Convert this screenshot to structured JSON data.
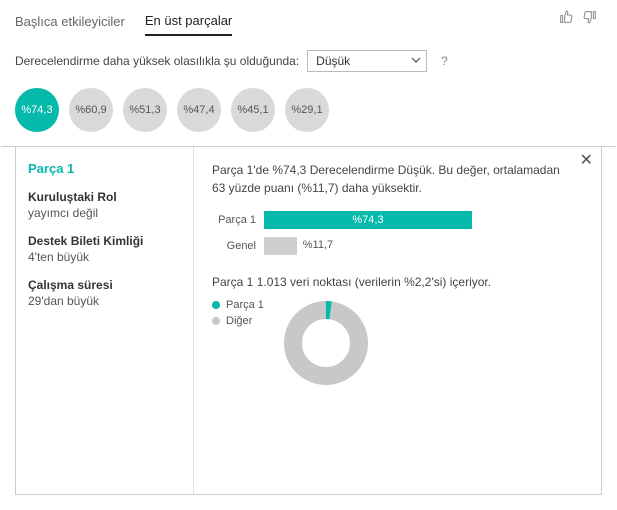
{
  "colors": {
    "accent": "#05b9ab",
    "gray_bubble": "#d9d9d9",
    "gray_bar": "#cfcfcf",
    "gray_donut": "#c8c8c8",
    "text": "#333333",
    "muted": "#666666"
  },
  "tabs": {
    "influencers": "Başlıca etkileyiciler",
    "top_segments": "En üst parçalar",
    "active": "top_segments"
  },
  "filter": {
    "prompt": "Derecelendirme daha yüksek olasılıkla şu olduğunda:",
    "selected": "Düşük",
    "help": "?"
  },
  "bubbles": [
    {
      "label": "%74,3",
      "value": 74.3,
      "active": true
    },
    {
      "label": "%60,9",
      "value": 60.9,
      "active": false
    },
    {
      "label": "%51,3",
      "value": 51.3,
      "active": false
    },
    {
      "label": "%47,4",
      "value": 47.4,
      "active": false
    },
    {
      "label": "%45,1",
      "value": 45.1,
      "active": false
    },
    {
      "label": "%29,1",
      "value": 29.1,
      "active": false
    }
  ],
  "segment": {
    "title": "Parça 1",
    "criteria": [
      {
        "k": "Kuruluştaki Rol",
        "v": "yayımcı değil"
      },
      {
        "k": "Destek Bileti Kimliği",
        "v": "4'ten büyük"
      },
      {
        "k": "Çalışma süresi",
        "v": "29'dan büyük"
      }
    ]
  },
  "detail": {
    "description": "Parça 1'de %74,3 Derecelendirme Düşük. Bu değer, ortalamadan 63 yüzde puanı (%11,7) daha yüksektir.",
    "bars": {
      "max": 100,
      "track_width": 280,
      "rows": [
        {
          "label": "Parça 1",
          "value": 74.3,
          "display": "%74,3",
          "color": "#05b9ab",
          "text_color": "#ffffff"
        },
        {
          "label": "Genel",
          "value": 11.7,
          "display": "%11,7",
          "color": "#cfcfcf",
          "text_color": "#555555"
        }
      ]
    },
    "points_text": "Parça 1 1.013 veri noktası (verilerin %2,2'si) içeriyor.",
    "donut": {
      "segment_pct": 2.2,
      "segment_color": "#05b9ab",
      "other_color": "#c8c8c8",
      "inner_radius": 24,
      "outer_radius": 42
    },
    "legend": [
      {
        "label": "Parça 1",
        "color": "#05b9ab"
      },
      {
        "label": "Diğer",
        "color": "#c8c8c8"
      }
    ]
  }
}
